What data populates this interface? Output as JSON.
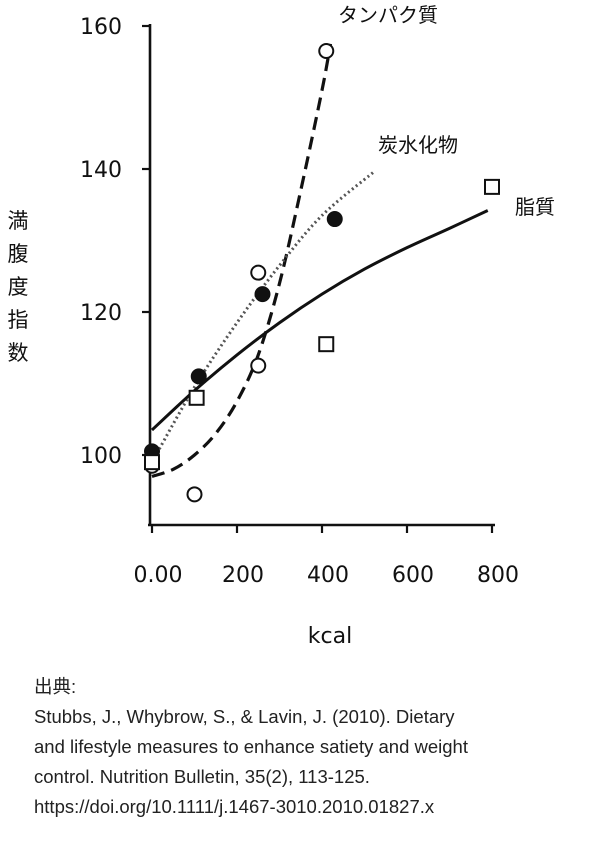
{
  "chart_data": {
    "type": "scatter",
    "xlabel": "kcal",
    "ylabel": "満腹度指数",
    "xlim": [
      -5,
      800
    ],
    "ylim": [
      90,
      160
    ],
    "x_ticks": [
      {
        "value": 0,
        "label": "0.00"
      },
      {
        "value": 200,
        "label": "200"
      },
      {
        "value": 400,
        "label": "400"
      },
      {
        "value": 600,
        "label": "600"
      },
      {
        "value": 800,
        "label": "800"
      }
    ],
    "y_ticks": [
      {
        "value": 100,
        "label": "100"
      },
      {
        "value": 120,
        "label": "120"
      },
      {
        "value": 140,
        "label": "140"
      },
      {
        "value": 160,
        "label": "160"
      }
    ],
    "series": [
      {
        "name": "タンパク質",
        "marker": "open-circle",
        "line_style": "dashed",
        "points": [
          {
            "x": 0,
            "y": 98.5
          },
          {
            "x": 100,
            "y": 94.5
          },
          {
            "x": 250,
            "y": 112.5
          },
          {
            "x": 250,
            "y": 125.5
          },
          {
            "x": 410,
            "y": 156.5
          }
        ],
        "fit": [
          {
            "x": 0,
            "y": 97
          },
          {
            "x": 50,
            "y": 98
          },
          {
            "x": 100,
            "y": 100
          },
          {
            "x": 150,
            "y": 103
          },
          {
            "x": 200,
            "y": 107.5
          },
          {
            "x": 250,
            "y": 114
          },
          {
            "x": 300,
            "y": 124
          },
          {
            "x": 350,
            "y": 137
          },
          {
            "x": 400,
            "y": 151
          },
          {
            "x": 420,
            "y": 157.5
          }
        ]
      },
      {
        "name": "炭水化物",
        "marker": "filled-circle",
        "line_style": "dotted",
        "points": [
          {
            "x": 0,
            "y": 100.5
          },
          {
            "x": 110,
            "y": 111
          },
          {
            "x": 260,
            "y": 122.5
          },
          {
            "x": 430,
            "y": 133
          }
        ],
        "fit": [
          {
            "x": 0,
            "y": 99
          },
          {
            "x": 100,
            "y": 109.5
          },
          {
            "x": 200,
            "y": 118.5
          },
          {
            "x": 300,
            "y": 126.5
          },
          {
            "x": 400,
            "y": 133.5
          },
          {
            "x": 520,
            "y": 139.5
          }
        ]
      },
      {
        "name": "脂質",
        "marker": "open-square",
        "line_style": "solid",
        "points": [
          {
            "x": 0,
            "y": 99
          },
          {
            "x": 105,
            "y": 108
          },
          {
            "x": 410,
            "y": 115.5
          },
          {
            "x": 800,
            "y": 137.5
          }
        ],
        "fit": [
          {
            "x": 0,
            "y": 103.5
          },
          {
            "x": 100,
            "y": 109
          },
          {
            "x": 200,
            "y": 114
          },
          {
            "x": 300,
            "y": 118.5
          },
          {
            "x": 400,
            "y": 122.5
          },
          {
            "x": 500,
            "y": 126
          },
          {
            "x": 600,
            "y": 129
          },
          {
            "x": 700,
            "y": 131.7
          },
          {
            "x": 790,
            "y": 134.2
          }
        ]
      }
    ]
  },
  "citation": {
    "label": "出典:",
    "line1": "Stubbs, J., Whybrow, S., & Lavin, J. (2010). Dietary",
    "line2": "and lifestyle measures to enhance satiety and weight",
    "line3": "control. Nutrition Bulletin, 35(2), 113-125.",
    "line4": "https://doi.org/10.1111/j.1467-3010.2010.01827.x"
  }
}
